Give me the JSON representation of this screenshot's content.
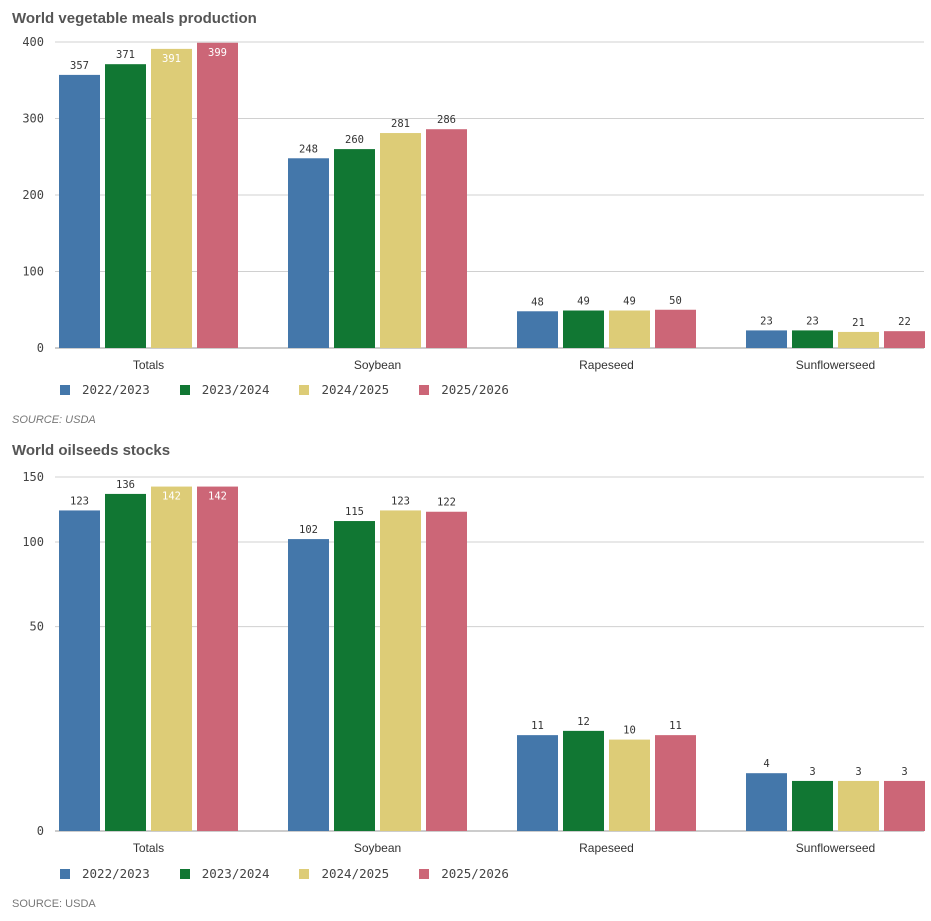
{
  "charts": [
    {
      "chart_data": {
        "type": "bar",
        "title": "World vegetable meals production",
        "categories": [
          "Totals",
          "Soybean",
          "Rapeseed",
          "Sunflowerseed"
        ],
        "series": [
          {
            "name": "2022/2023",
            "values": [
              357,
              248,
              48,
              23
            ],
            "color": "#4477aa"
          },
          {
            "name": "2023/2024",
            "values": [
              371,
              260,
              49,
              23
            ],
            "color": "#117733"
          },
          {
            "name": "2024/2025",
            "values": [
              391,
              281,
              49,
              21
            ],
            "color": "#ddcc77"
          },
          {
            "name": "2025/2026",
            "values": [
              399,
              286,
              50,
              22
            ],
            "color": "#cc6677"
          }
        ],
        "yticks": [
          0,
          100,
          200,
          300,
          400
        ],
        "ylim": [
          0,
          400
        ],
        "scale": "linear",
        "grid": true,
        "legend": "bottom-left",
        "source": "SOURCE: USDA"
      }
    },
    {
      "chart_data": {
        "type": "bar",
        "title": "World oilseeds stocks",
        "categories": [
          "Totals",
          "Soybean",
          "Rapeseed",
          "Sunflowerseed"
        ],
        "series": [
          {
            "name": "2022/2023",
            "values": [
              123,
              102,
              11,
              4
            ],
            "color": "#4477aa"
          },
          {
            "name": "2023/2024",
            "values": [
              136,
              115,
              12,
              3
            ],
            "color": "#117733"
          },
          {
            "name": "2024/2025",
            "values": [
              142,
              123,
              10,
              3
            ],
            "color": "#ddcc77"
          },
          {
            "name": "2025/2026",
            "values": [
              142,
              122,
              11,
              3
            ],
            "color": "#cc6677"
          }
        ],
        "yticks": [
          0,
          50,
          100,
          150
        ],
        "ylim": [
          0,
          150
        ],
        "scale": "sqrt",
        "grid": true,
        "legend": "bottom-left",
        "source": "SOURCE: USDA"
      }
    }
  ]
}
